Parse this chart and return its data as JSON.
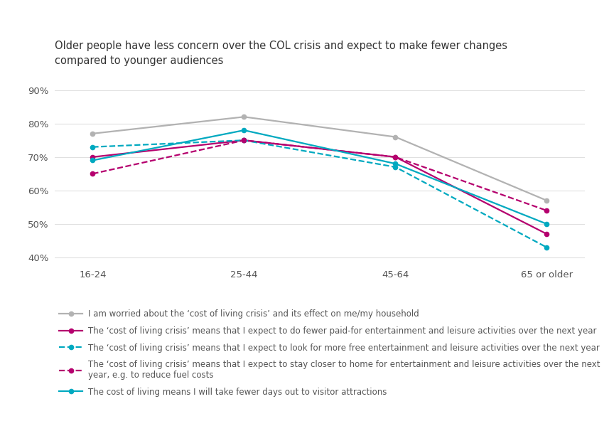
{
  "title": "Older people have less concern over the COL crisis and expect to make fewer changes\ncompared to younger audiences",
  "categories": [
    "16-24",
    "25-44",
    "45-64",
    "65 or older"
  ],
  "series": [
    {
      "label": "I am worried about the ‘cost of living crisis’ and its effect on me/my household",
      "values": [
        77,
        82,
        76,
        57
      ],
      "color": "#b2b2b2",
      "linestyle": "solid",
      "dashed": false
    },
    {
      "label": "The ‘cost of living crisis’ means that I expect to do fewer paid-for entertainment and leisure activities over the next year",
      "values": [
        70,
        75,
        70,
        47
      ],
      "color": "#b5006e",
      "linestyle": "solid",
      "dashed": false
    },
    {
      "label": "The ‘cost of living crisis’ means that I expect to look for more free entertainment and leisure activities over the next year",
      "values": [
        73,
        75,
        67,
        43
      ],
      "color": "#00a9c0",
      "linestyle": "dashed",
      "dashed": true
    },
    {
      "label": "The ‘cost of living crisis’ means that I expect to stay closer to home for entertainment and leisure activities over the next year, e.g. to reduce fuel costs",
      "values": [
        65,
        75,
        70,
        54
      ],
      "color": "#b5006e",
      "linestyle": "dashed",
      "dashed": true
    },
    {
      "label": "The cost of living means I will take fewer days out to visitor attractions",
      "values": [
        69,
        78,
        68,
        50
      ],
      "color": "#00a9c0",
      "linestyle": "solid",
      "dashed": false
    }
  ],
  "ylim": [
    38,
    94
  ],
  "yticks": [
    40,
    50,
    60,
    70,
    80,
    90
  ],
  "ytick_labels": [
    "40%",
    "50%",
    "60%",
    "70%",
    "80%",
    "90%"
  ],
  "background_color": "#ffffff",
  "title_fontsize": 10.5,
  "tick_fontsize": 9.5,
  "legend_fontsize": 8.5
}
